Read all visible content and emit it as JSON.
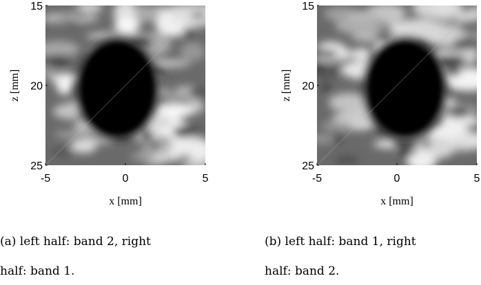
{
  "figures": [
    {
      "xlabel": "x [mm]",
      "ylabel": "z [mm]",
      "xlim": [
        -5,
        5
      ],
      "ylim": [
        15,
        25
      ],
      "xticks": [
        -5,
        0,
        5
      ],
      "yticks": [
        15,
        20,
        25
      ],
      "caption": [
        "(a) left half: band 2, right",
        "half: band 1."
      ]
    },
    {
      "xlabel": "x [mm]",
      "ylabel": "z [mm]",
      "xlim": [
        -5,
        5
      ],
      "ylim": [
        15,
        25
      ],
      "xticks": [
        -5,
        0,
        5
      ],
      "yticks": [
        15,
        20,
        25
      ],
      "caption": [
        "(b) left half: band 1, right",
        "half: band 2."
      ]
    }
  ]
}
